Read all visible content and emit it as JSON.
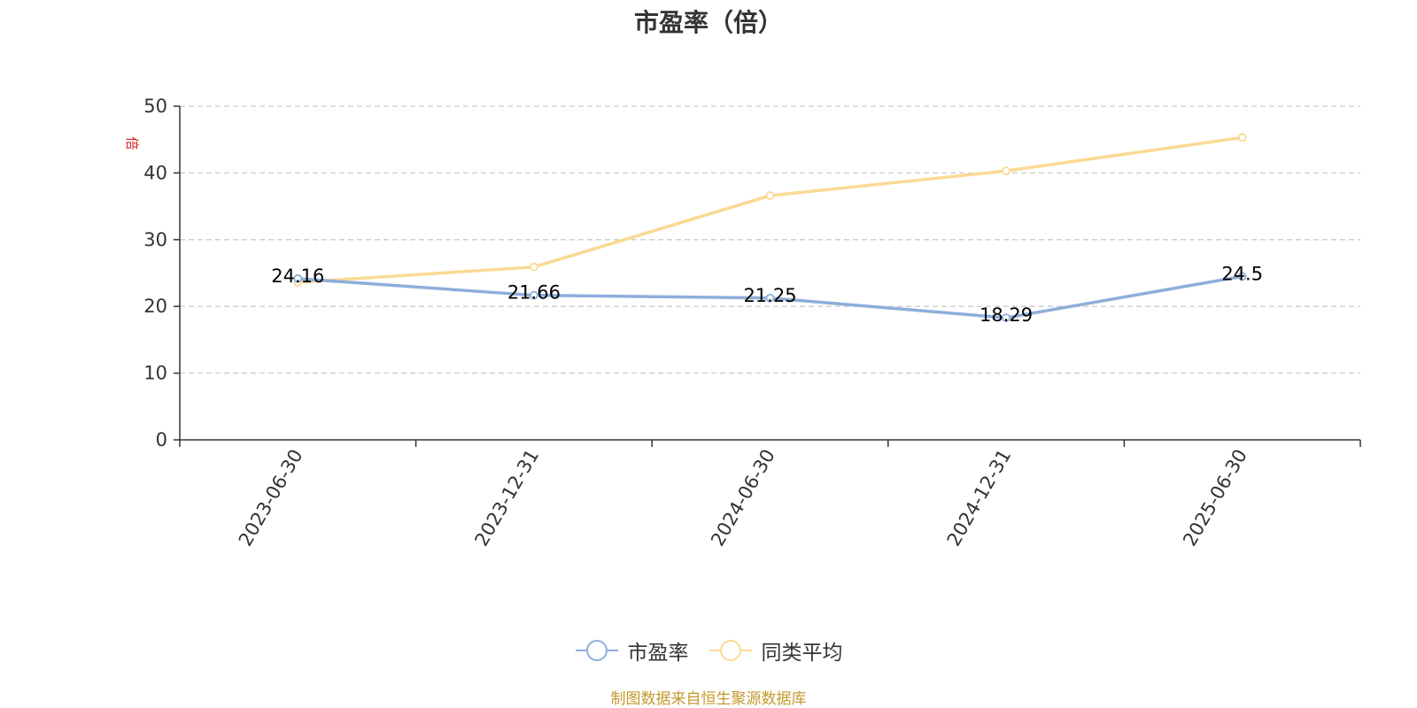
{
  "chart_data": {
    "type": "line",
    "title": "市盈率（倍）",
    "ylabel": "倍",
    "xlabel": "",
    "categories": [
      "2023-06-30",
      "2023-12-31",
      "2024-06-30",
      "2024-12-31",
      "2025-06-30"
    ],
    "series": [
      {
        "name": "市盈率",
        "color": "#8eaedb",
        "values": [
          24.16,
          21.66,
          21.25,
          18.29,
          24.5
        ],
        "data_labels": [
          "24.16",
          "21.66",
          "21.25",
          "18.29",
          "24.5"
        ]
      },
      {
        "name": "同类平均",
        "color": "#fbd993",
        "values": [
          23.6,
          25.9,
          36.6,
          40.3,
          45.3
        ]
      }
    ],
    "ylim": [
      0,
      50
    ],
    "yticks": [
      0,
      10,
      20,
      30,
      40,
      50
    ],
    "grid": true,
    "legend_position": "bottom-center",
    "ylabel_color": "#e02020"
  },
  "legend": {
    "items": [
      {
        "label": "市盈率",
        "color": "#8eaedb"
      },
      {
        "label": "同类平均",
        "color": "#fbd993"
      }
    ]
  },
  "footer": {
    "source_note": "制图数据来自恒生聚源数据库",
    "source_color": "#c49a2c"
  }
}
